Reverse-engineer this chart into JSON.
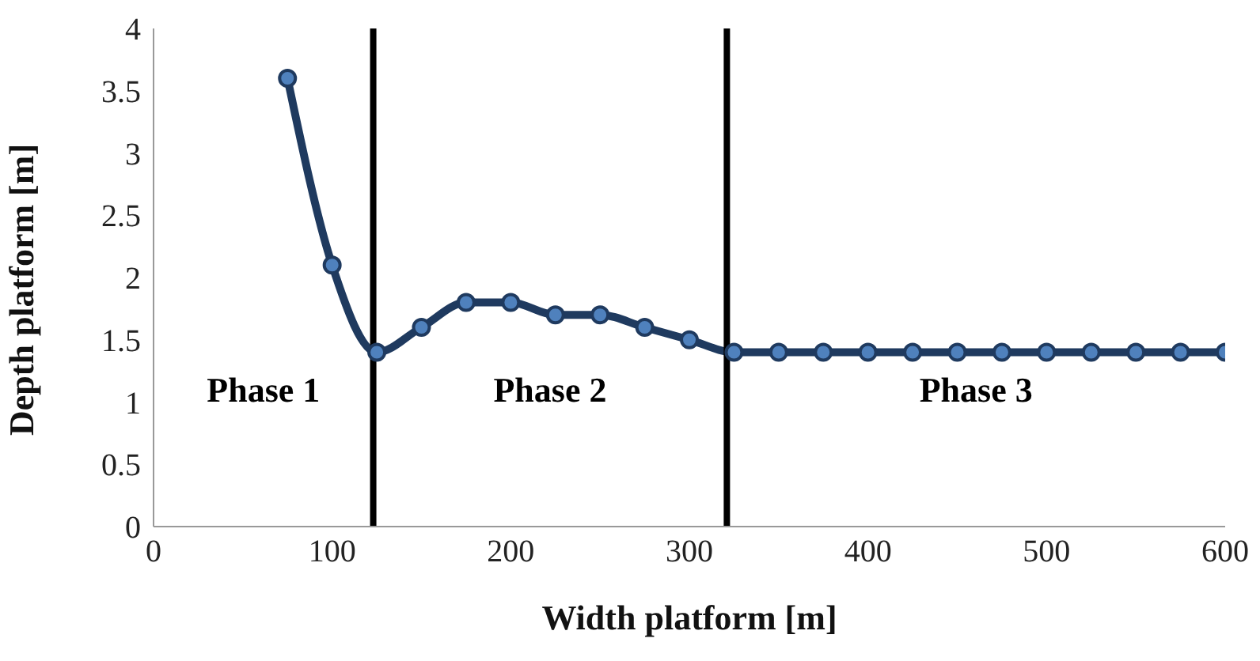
{
  "chart_data": {
    "type": "line",
    "xlabel": "Width platform [m]",
    "ylabel": "Depth platform [m]",
    "x": [
      75,
      100,
      125,
      150,
      175,
      200,
      225,
      250,
      275,
      300,
      325,
      350,
      375,
      400,
      425,
      450,
      475,
      500,
      525,
      550,
      575,
      600
    ],
    "series": [
      {
        "color": "#1f3a5f",
        "values": [
          3.6,
          2.1,
          1.4,
          1.6,
          1.8,
          1.8,
          1.7,
          1.7,
          1.6,
          1.5,
          1.4,
          1.4,
          1.4,
          1.4,
          1.4,
          1.4,
          1.4,
          1.4,
          1.4,
          1.4,
          1.4,
          1.4
        ]
      }
    ],
    "xlim": [
      0,
      600
    ],
    "xticks": [
      0,
      100,
      200,
      300,
      400,
      500,
      600
    ],
    "ylim": [
      0,
      4
    ],
    "yticks": [
      0,
      0.5,
      1,
      1.5,
      2,
      2.5,
      3,
      3.5,
      4
    ],
    "grid": false,
    "legend": false,
    "marker": "circle",
    "line_style": "solid",
    "ref_lines": [
      {
        "axis": "x",
        "value": 123,
        "color": "#000000"
      },
      {
        "axis": "x",
        "value": 321,
        "color": "#000000"
      }
    ],
    "annotations": [
      "Phase 1",
      "Phase 2",
      "Phase 3"
    ]
  }
}
